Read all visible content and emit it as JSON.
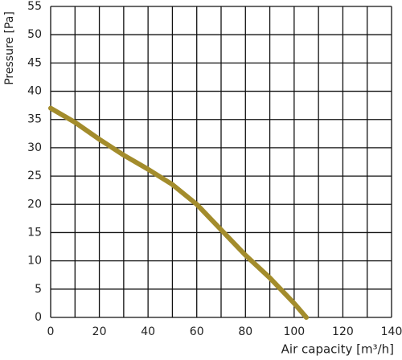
{
  "chart_data": {
    "type": "line",
    "x_label": "Air capacity [m³/h]",
    "y_label": "Pressure [Pa]",
    "x": [
      0,
      10,
      20,
      30,
      40,
      50,
      60,
      70,
      80,
      90,
      100,
      105
    ],
    "series": [
      {
        "color": "#a38c2c",
        "values": [
          37,
          34.5,
          31.5,
          28.7,
          26.2,
          23.5,
          20,
          15.5,
          11,
          7,
          2.5,
          0
        ]
      }
    ],
    "xlim": [
      0,
      140
    ],
    "xticks": [
      0,
      20,
      40,
      60,
      80,
      100,
      120,
      140
    ],
    "x_minor_grid": [
      10,
      30,
      50,
      70,
      90,
      110,
      130
    ],
    "ylim": [
      0,
      55
    ],
    "yticks": [
      0,
      5,
      10,
      15,
      20,
      25,
      30,
      35,
      40,
      45,
      50,
      55
    ],
    "grid": true
  }
}
